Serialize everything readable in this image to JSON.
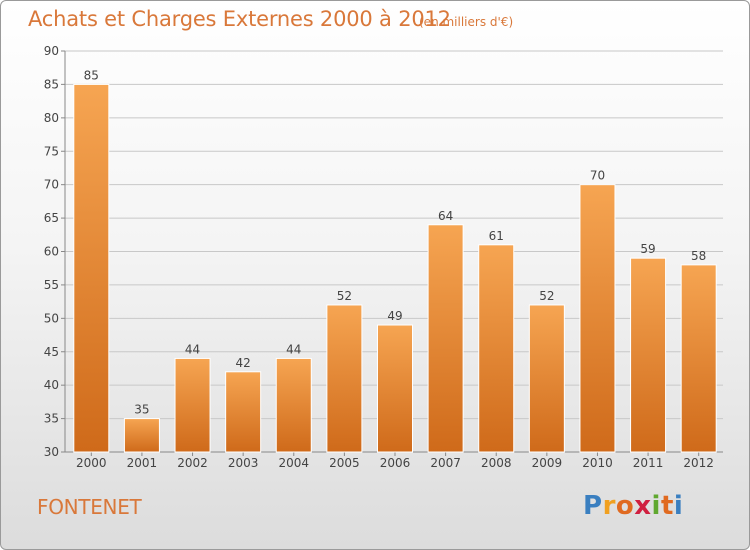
{
  "title": "Achats et Charges Externes 2000 à 2012",
  "unit_note": "(en milliers d'€)",
  "place": "FONTENET",
  "logo": {
    "letters": [
      "P",
      "r",
      "o",
      "x",
      "i",
      "t",
      "i"
    ],
    "colors": [
      "#3a7fc0",
      "#f0a020",
      "#e06a20",
      "#d02040",
      "#60a830",
      "#e06a20",
      "#3a7fc0"
    ]
  },
  "colors": {
    "accent": "#d9783a",
    "bar_top": "#f6a552",
    "bar_bottom": "#cf6a1a",
    "grid": "#c8c8c8"
  },
  "chart_data": {
    "type": "bar",
    "categories": [
      "2000",
      "2001",
      "2002",
      "2003",
      "2004",
      "2005",
      "2006",
      "2007",
      "2008",
      "2009",
      "2010",
      "2011",
      "2012"
    ],
    "values": [
      85,
      35,
      44,
      42,
      44,
      52,
      49,
      64,
      61,
      52,
      70,
      59,
      58
    ],
    "ylim": [
      30,
      90
    ],
    "yticks": [
      30,
      35,
      40,
      45,
      50,
      55,
      60,
      65,
      70,
      75,
      80,
      85,
      90
    ],
    "grid": true,
    "data_labels": true
  }
}
